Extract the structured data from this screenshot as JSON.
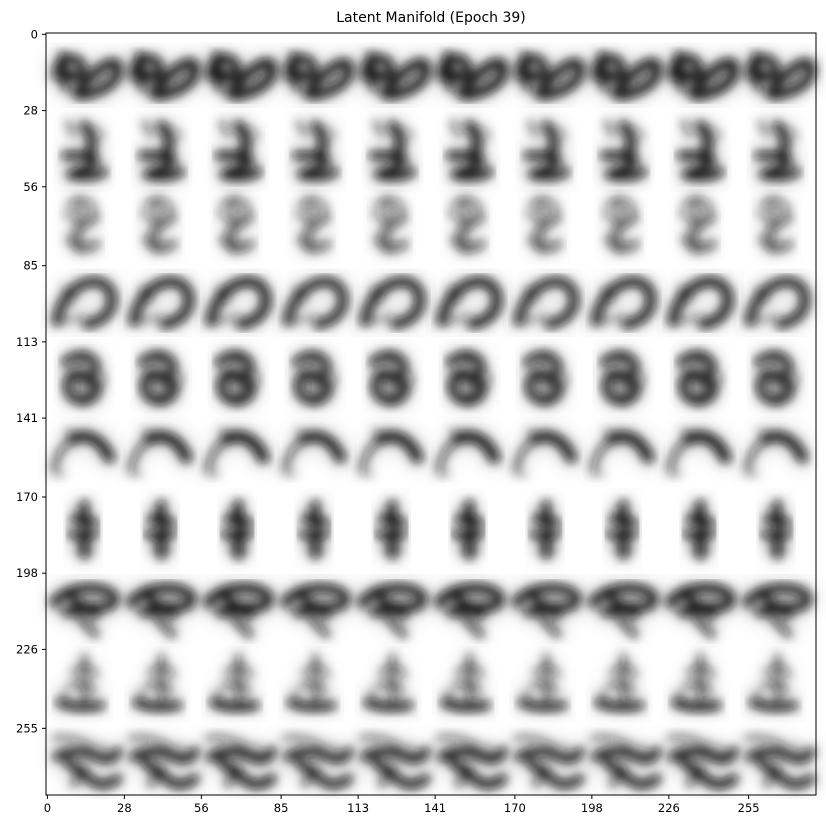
{
  "chart_data": {
    "type": "heatmap",
    "title": "Latent Manifold (Epoch 39)",
    "xlabel": "",
    "ylabel": "",
    "grid": false,
    "colormap": "gray_r",
    "image_extent": {
      "x": [
        0,
        280
      ],
      "y": [
        0,
        280
      ]
    },
    "xlim": [
      -0.5,
      279.5
    ],
    "ylim": [
      279.5,
      -0.5
    ],
    "rows": 10,
    "cols": 10,
    "tile_size": 28,
    "x_ticks": [
      0,
      28,
      56,
      85,
      113,
      141,
      170,
      198,
      226,
      255
    ],
    "x_tick_labels": [
      "0",
      "28",
      "56",
      "85",
      "113",
      "141",
      "170",
      "198",
      "226",
      "255"
    ],
    "y_ticks": [
      0,
      28,
      56,
      85,
      113,
      141,
      170,
      198,
      226,
      255
    ],
    "y_tick_labels": [
      "0",
      "28",
      "56",
      "85",
      "113",
      "141",
      "170",
      "198",
      "226",
      "255"
    ],
    "row_glyphs": [
      "two-with-loop",
      "z-squiggle",
      "faint-eight",
      "hook-curve",
      "blob-loop",
      "arc-stroke",
      "vertical-cross",
      "horizontal-loop",
      "faint-cursive",
      "wide-scrawl"
    ]
  }
}
